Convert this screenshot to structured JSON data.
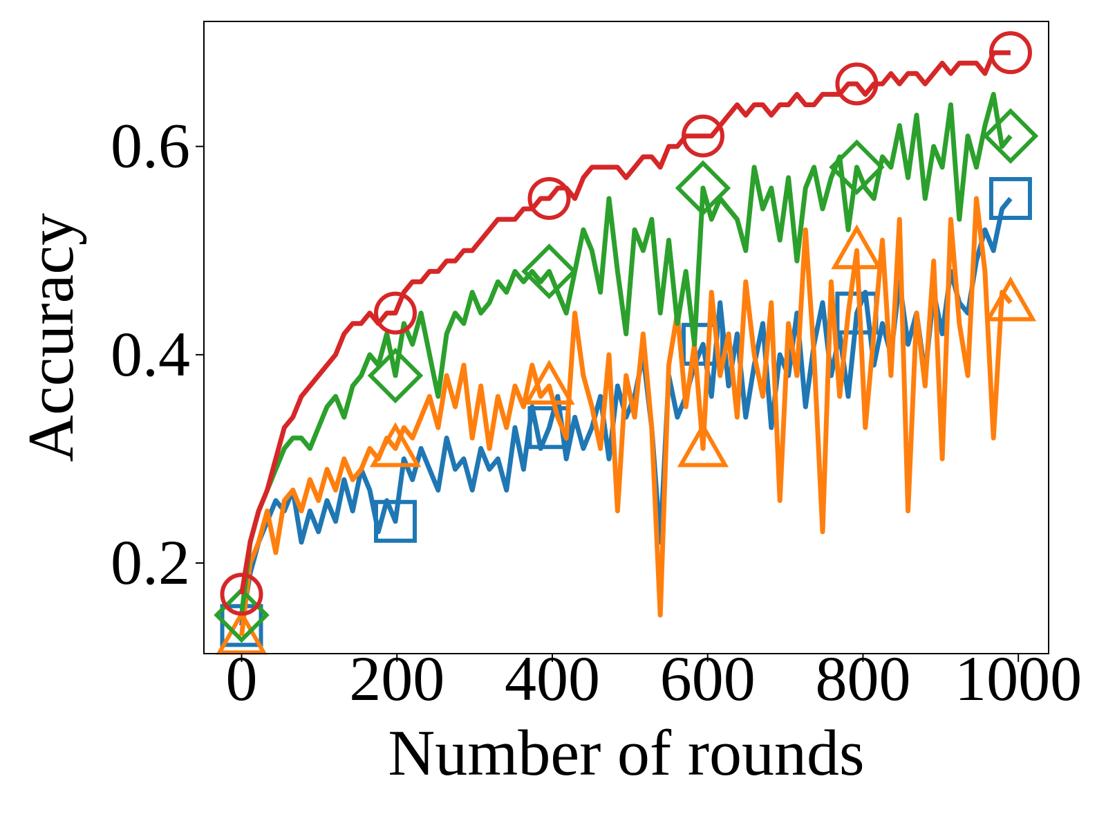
{
  "chart_data": {
    "type": "line",
    "x_label": "Number of rounds",
    "y_label": "Accuracy",
    "xlim": [
      -48.5,
      1039
    ],
    "ylim": [
      0.113,
      0.72
    ],
    "xticks": [
      0,
      200,
      400,
      600,
      800,
      1000
    ],
    "yticks": [
      0.2,
      0.4,
      0.6
    ],
    "markevery": 18,
    "x": [
      0,
      11,
      22,
      33,
      44,
      55,
      66,
      77,
      88,
      99,
      110,
      121,
      132,
      143,
      154,
      165,
      176,
      187,
      198,
      209,
      220,
      231,
      242,
      253,
      264,
      275,
      286,
      297,
      308,
      319,
      330,
      341,
      352,
      363,
      374,
      385,
      396,
      407,
      418,
      429,
      440,
      451,
      462,
      473,
      484,
      495,
      506,
      517,
      528,
      539,
      550,
      561,
      572,
      583,
      594,
      605,
      616,
      627,
      638,
      649,
      660,
      671,
      682,
      693,
      704,
      715,
      726,
      737,
      748,
      759,
      770,
      781,
      792,
      803,
      814,
      825,
      836,
      847,
      858,
      869,
      880,
      891,
      902,
      913,
      924,
      935,
      946,
      957,
      968,
      979,
      990
    ],
    "series": [
      {
        "color": "#1f77b4",
        "marker": "square",
        "values": [
          0.14,
          0.19,
          0.22,
          0.24,
          0.26,
          0.25,
          0.27,
          0.22,
          0.25,
          0.23,
          0.26,
          0.24,
          0.28,
          0.25,
          0.29,
          0.27,
          0.23,
          0.26,
          0.24,
          0.3,
          0.28,
          0.31,
          0.29,
          0.27,
          0.32,
          0.29,
          0.3,
          0.27,
          0.31,
          0.29,
          0.3,
          0.27,
          0.33,
          0.29,
          0.35,
          0.31,
          0.33,
          0.36,
          0.3,
          0.34,
          0.31,
          0.33,
          0.36,
          0.3,
          0.37,
          0.34,
          0.36,
          0.4,
          0.33,
          0.22,
          0.38,
          0.34,
          0.36,
          0.39,
          0.41,
          0.36,
          0.45,
          0.37,
          0.42,
          0.34,
          0.39,
          0.43,
          0.33,
          0.4,
          0.38,
          0.44,
          0.35,
          0.41,
          0.45,
          0.38,
          0.42,
          0.36,
          0.44,
          0.46,
          0.39,
          0.43,
          0.4,
          0.47,
          0.41,
          0.44,
          0.38,
          0.46,
          0.42,
          0.48,
          0.45,
          0.44,
          0.49,
          0.52,
          0.5,
          0.54,
          0.55
        ]
      },
      {
        "color": "#ff7f0e",
        "marker": "triangle",
        "values": [
          0.13,
          0.2,
          0.22,
          0.25,
          0.21,
          0.26,
          0.27,
          0.25,
          0.28,
          0.26,
          0.29,
          0.27,
          0.3,
          0.28,
          0.29,
          0.31,
          0.3,
          0.32,
          0.31,
          0.33,
          0.32,
          0.34,
          0.36,
          0.33,
          0.38,
          0.35,
          0.39,
          0.32,
          0.37,
          0.31,
          0.36,
          0.33,
          0.37,
          0.35,
          0.39,
          0.36,
          0.37,
          0.34,
          0.32,
          0.44,
          0.38,
          0.35,
          0.31,
          0.4,
          0.25,
          0.38,
          0.34,
          0.42,
          0.33,
          0.15,
          0.39,
          0.44,
          0.35,
          0.41,
          0.31,
          0.46,
          0.38,
          0.42,
          0.34,
          0.47,
          0.4,
          0.36,
          0.45,
          0.26,
          0.43,
          0.38,
          0.52,
          0.4,
          0.23,
          0.47,
          0.36,
          0.44,
          0.5,
          0.33,
          0.42,
          0.51,
          0.38,
          0.53,
          0.25,
          0.44,
          0.37,
          0.49,
          0.3,
          0.53,
          0.43,
          0.38,
          0.55,
          0.48,
          0.32,
          0.46,
          0.45
        ]
      },
      {
        "color": "#2ca02c",
        "marker": "diamond",
        "values": [
          0.15,
          0.22,
          0.25,
          0.27,
          0.29,
          0.31,
          0.32,
          0.32,
          0.31,
          0.33,
          0.35,
          0.36,
          0.34,
          0.37,
          0.38,
          0.4,
          0.39,
          0.42,
          0.38,
          0.43,
          0.41,
          0.44,
          0.4,
          0.36,
          0.42,
          0.44,
          0.43,
          0.46,
          0.44,
          0.45,
          0.47,
          0.46,
          0.48,
          0.47,
          0.48,
          0.47,
          0.48,
          0.46,
          0.44,
          0.48,
          0.52,
          0.5,
          0.46,
          0.55,
          0.48,
          0.42,
          0.52,
          0.5,
          0.53,
          0.44,
          0.51,
          0.43,
          0.48,
          0.41,
          0.56,
          0.53,
          0.55,
          0.54,
          0.53,
          0.5,
          0.58,
          0.54,
          0.56,
          0.51,
          0.57,
          0.49,
          0.56,
          0.58,
          0.54,
          0.57,
          0.59,
          0.52,
          0.58,
          0.56,
          0.55,
          0.59,
          0.58,
          0.62,
          0.57,
          0.63,
          0.55,
          0.6,
          0.58,
          0.64,
          0.53,
          0.61,
          0.58,
          0.62,
          0.65,
          0.6,
          0.61
        ]
      },
      {
        "color": "#d62728",
        "marker": "circle",
        "values": [
          0.17,
          0.22,
          0.25,
          0.27,
          0.3,
          0.33,
          0.34,
          0.36,
          0.37,
          0.38,
          0.39,
          0.4,
          0.42,
          0.43,
          0.43,
          0.44,
          0.43,
          0.44,
          0.44,
          0.46,
          0.47,
          0.47,
          0.48,
          0.48,
          0.49,
          0.49,
          0.5,
          0.5,
          0.51,
          0.52,
          0.53,
          0.53,
          0.53,
          0.54,
          0.54,
          0.55,
          0.55,
          0.56,
          0.56,
          0.55,
          0.57,
          0.58,
          0.58,
          0.58,
          0.58,
          0.57,
          0.58,
          0.59,
          0.59,
          0.58,
          0.6,
          0.6,
          0.61,
          0.61,
          0.61,
          0.61,
          0.62,
          0.63,
          0.64,
          0.63,
          0.64,
          0.64,
          0.63,
          0.64,
          0.64,
          0.65,
          0.64,
          0.64,
          0.65,
          0.65,
          0.65,
          0.66,
          0.66,
          0.65,
          0.66,
          0.66,
          0.67,
          0.66,
          0.67,
          0.67,
          0.66,
          0.67,
          0.68,
          0.67,
          0.68,
          0.68,
          0.68,
          0.67,
          0.69,
          0.69,
          0.69
        ]
      }
    ]
  }
}
